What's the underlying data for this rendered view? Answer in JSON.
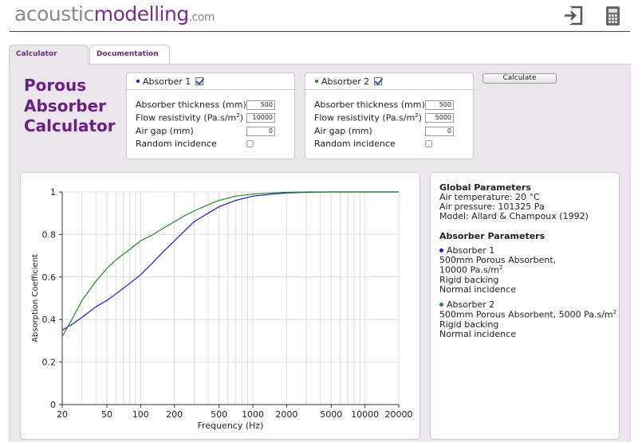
{
  "header": {
    "logo_part1": "acoustic",
    "logo_part2": "modelling",
    "logo_part3": ".com",
    "login_icon": "login-icon",
    "calculator_icon": "calculator-icon"
  },
  "tabs": [
    {
      "label": "Calculator",
      "active": true
    },
    {
      "label": "Documentation",
      "active": false
    }
  ],
  "page_title": [
    "Porous",
    "Absorber",
    "Calculator"
  ],
  "absorbers": [
    {
      "name": "Absorber 1",
      "enabled": true,
      "color": "#1717e6",
      "thickness_label": "Absorber thickness (mm)",
      "thickness_value": "500",
      "resistivity_label": "Flow resistivity (Pa.s/m",
      "resistivity_sup": "2",
      "resistivity_close": ")",
      "resistivity_value": "10000",
      "airgap_label": "Air gap (mm)",
      "airgap_value": "0",
      "random_label": "Random incidence",
      "random_checked": false
    },
    {
      "name": "Absorber 2",
      "enabled": true,
      "color": "#1f8a1f",
      "thickness_label": "Absorber thickness (mm)",
      "thickness_value": "500",
      "resistivity_label": "Flow resistivity (Pa.s/m",
      "resistivity_sup": "2",
      "resistivity_close": ")",
      "resistivity_value": "5000",
      "airgap_label": "Air gap (mm)",
      "airgap_value": "0",
      "random_label": "Random incidence",
      "random_checked": false
    }
  ],
  "calculate_label": "Calculate",
  "info": {
    "global_heading": "Global Parameters",
    "air_temperature": "Air temperature: 20 °C",
    "air_pressure": "Air pressure: 101325 Pa",
    "model": "Model: Allard & Champoux (1992)",
    "absorber_heading": "Absorber Parameters",
    "a1_name": "Absorber 1",
    "a1_line1": "500mm Porous Absorbent,",
    "a1_line2": "10000 Pa.s/m",
    "a1_line2_sup": "2",
    "a1_line3": "Rigid backing",
    "a1_line4": "Normal incidence",
    "a2_name": "Absorber 2",
    "a2_line1": "500mm Porous Absorbent, 5000 Pa.s/m",
    "a2_line1_sup": "2",
    "a2_line2": "Rigid backing",
    "a2_line3": "Normal incidence"
  },
  "chart_data": {
    "type": "line",
    "xscale": "log",
    "xlabel": "Frequency (Hz)",
    "ylabel": "Absorption Coefficient",
    "xlim": [
      20,
      20000
    ],
    "ylim": [
      0,
      1
    ],
    "xticks": [
      20,
      50,
      100,
      200,
      500,
      1000,
      2000,
      5000,
      10000,
      20000
    ],
    "xtick_labels": [
      "20",
      "50",
      "100",
      "200",
      "500",
      "1000",
      "2000",
      "5000",
      "10000",
      "20000"
    ],
    "yticks": [
      0,
      0.2,
      0.4,
      0.6,
      0.8,
      1
    ],
    "ytick_labels": [
      "0",
      "0.2",
      "0.4",
      "0.6",
      "0.8",
      "1"
    ],
    "grid": true,
    "series": [
      {
        "name": "Absorber 1",
        "color": "#1717e6",
        "x": [
          20,
          25,
          30,
          40,
          50,
          60,
          80,
          100,
          130,
          160,
          200,
          250,
          300,
          400,
          500,
          700,
          1000,
          1500,
          2000,
          3000,
          5000,
          10000,
          20000
        ],
        "y": [
          0.35,
          0.38,
          0.41,
          0.46,
          0.49,
          0.52,
          0.57,
          0.61,
          0.67,
          0.72,
          0.77,
          0.82,
          0.86,
          0.9,
          0.93,
          0.96,
          0.98,
          0.99,
          0.995,
          0.998,
          1.0,
          1.0,
          1.0
        ]
      },
      {
        "name": "Absorber 2",
        "color": "#1f8a1f",
        "x": [
          20,
          25,
          30,
          40,
          50,
          60,
          80,
          100,
          130,
          160,
          200,
          250,
          300,
          400,
          500,
          700,
          1000,
          1500,
          2000,
          3000,
          5000,
          10000,
          20000
        ],
        "y": [
          0.32,
          0.41,
          0.49,
          0.58,
          0.64,
          0.68,
          0.73,
          0.77,
          0.8,
          0.83,
          0.86,
          0.89,
          0.91,
          0.94,
          0.96,
          0.98,
          0.99,
          0.995,
          0.998,
          1.0,
          1.0,
          1.0,
          1.0
        ]
      }
    ]
  }
}
